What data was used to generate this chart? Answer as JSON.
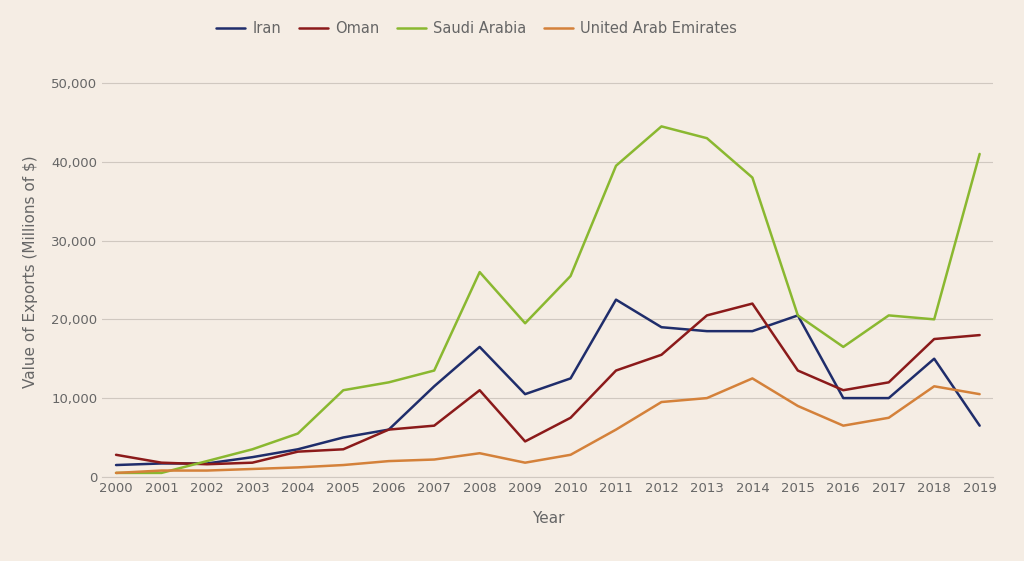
{
  "xlabel": "Year",
  "ylabel": "Value of Exports (Millions of $)",
  "background_color": "#f5ede4",
  "grid_color": "#d0c8c0",
  "years": [
    2000,
    2001,
    2002,
    2003,
    2004,
    2005,
    2006,
    2007,
    2008,
    2009,
    2010,
    2011,
    2012,
    2013,
    2014,
    2015,
    2016,
    2017,
    2018,
    2019
  ],
  "series": {
    "Iran": {
      "color": "#1f2d6b",
      "linewidth": 1.8,
      "data": [
        1500,
        1700,
        1700,
        2500,
        3500,
        5000,
        6000,
        11500,
        16500,
        10500,
        12500,
        22500,
        19000,
        18500,
        18500,
        20500,
        10000,
        10000,
        15000,
        6500
      ]
    },
    "Oman": {
      "color": "#8b1a1a",
      "linewidth": 1.8,
      "data": [
        2800,
        1800,
        1600,
        1800,
        3200,
        3500,
        6000,
        6500,
        11000,
        4500,
        7500,
        13500,
        15500,
        20500,
        22000,
        13500,
        11000,
        12000,
        17500,
        18000
      ]
    },
    "Saudi Arabia": {
      "color": "#8ab830",
      "linewidth": 1.8,
      "data": [
        500,
        500,
        2000,
        3500,
        5500,
        11000,
        12000,
        13500,
        26000,
        19500,
        25500,
        39500,
        44500,
        43000,
        38000,
        20500,
        16500,
        20500,
        20000,
        41000
      ]
    },
    "United Arab Emirates": {
      "color": "#d4813a",
      "linewidth": 1.8,
      "data": [
        500,
        800,
        800,
        1000,
        1200,
        1500,
        2000,
        2200,
        3000,
        1800,
        2800,
        6000,
        9500,
        10000,
        12500,
        9000,
        6500,
        7500,
        11500,
        10500
      ]
    }
  },
  "ylim": [
    0,
    52000
  ],
  "yticks": [
    0,
    10000,
    20000,
    30000,
    40000,
    50000
  ],
  "ytick_labels": [
    "0",
    "10,000",
    "20,000",
    "30,000",
    "40,000",
    "50,000"
  ],
  "legend_ncol": 4,
  "title_fontsize": 14,
  "axis_label_fontsize": 11,
  "tick_fontsize": 9.5,
  "legend_fontsize": 10.5,
  "text_color": "#666666"
}
